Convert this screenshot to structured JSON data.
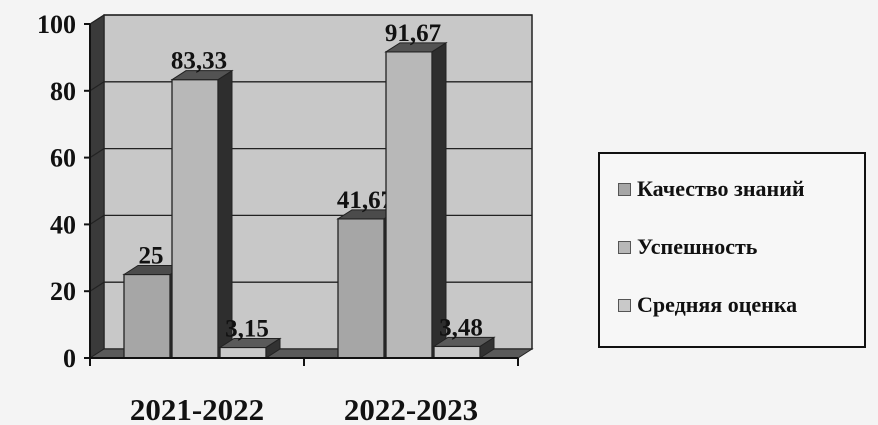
{
  "chart_data": {
    "type": "bar",
    "categories": [
      "2021-2022",
      "2022-2023"
    ],
    "series": [
      {
        "name": "Качество знаний",
        "values": [
          25,
          41.67
        ],
        "labels": [
          "25",
          "41,67"
        ],
        "color": "#a6a6a6"
      },
      {
        "name": "Успешность",
        "values": [
          83.33,
          91.67
        ],
        "labels": [
          "83,33",
          "91,67"
        ],
        "color": "#b8b8b8"
      },
      {
        "name": "Средняя оценка",
        "values": [
          3.15,
          3.48
        ],
        "labels": [
          "3,15",
          "3,48"
        ],
        "color": "#c9c9c9"
      }
    ],
    "ylim": [
      0,
      100
    ],
    "yticks": [
      0,
      20,
      40,
      60,
      80,
      100
    ],
    "ytick_labels": [
      "0",
      "20",
      "40",
      "60",
      "80",
      "100"
    ],
    "grid": true,
    "style": "3d-column",
    "legend_position": "right"
  }
}
